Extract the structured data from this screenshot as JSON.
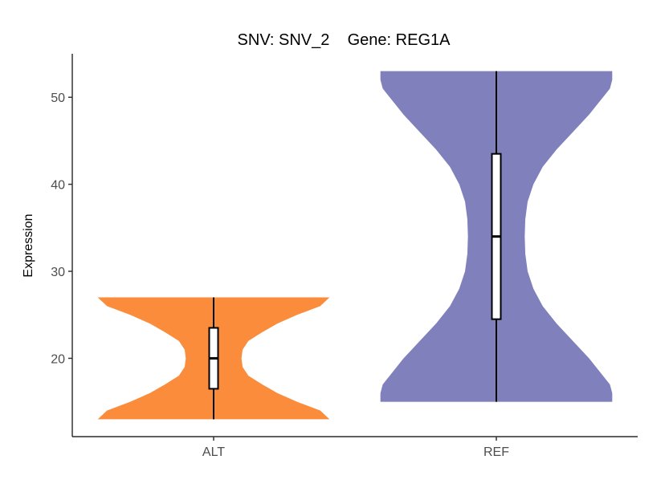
{
  "chart_data": {
    "type": "violin",
    "title": "SNV: SNV_2    Gene: REG1A",
    "xlabel": "",
    "ylabel": "Expression",
    "categories": [
      "ALT",
      "REF"
    ],
    "ylim": [
      11,
      55
    ],
    "yticks": [
      20,
      30,
      40,
      50
    ],
    "grid": false,
    "legend": "none",
    "series": [
      {
        "category": "ALT",
        "color": "#FB8C3C",
        "min": 13,
        "q1": 16.5,
        "median": 20,
        "q3": 23.5,
        "max": 27,
        "density": [
          [
            13,
            1.0
          ],
          [
            14,
            0.92
          ],
          [
            15,
            0.72
          ],
          [
            16,
            0.55
          ],
          [
            17,
            0.42
          ],
          [
            18,
            0.3
          ],
          [
            19,
            0.25
          ],
          [
            20,
            0.24
          ],
          [
            21,
            0.25
          ],
          [
            22,
            0.3
          ],
          [
            23,
            0.42
          ],
          [
            24,
            0.55
          ],
          [
            25,
            0.72
          ],
          [
            26,
            0.92
          ],
          [
            27,
            1.0
          ]
        ]
      },
      {
        "category": "REF",
        "color": "#8080BC",
        "min": 15,
        "q1": 24.5,
        "median": 34,
        "q3": 43.5,
        "max": 53,
        "density": [
          [
            15,
            1.0
          ],
          [
            16,
            1.0
          ],
          [
            17,
            0.98
          ],
          [
            18,
            0.92
          ],
          [
            20,
            0.8
          ],
          [
            22,
            0.66
          ],
          [
            24,
            0.52
          ],
          [
            26,
            0.4
          ],
          [
            28,
            0.32
          ],
          [
            30,
            0.27
          ],
          [
            32,
            0.25
          ],
          [
            34,
            0.245
          ],
          [
            36,
            0.25
          ],
          [
            38,
            0.27
          ],
          [
            40,
            0.32
          ],
          [
            42,
            0.4
          ],
          [
            44,
            0.52
          ],
          [
            46,
            0.66
          ],
          [
            48,
            0.8
          ],
          [
            50,
            0.92
          ],
          [
            51,
            0.98
          ],
          [
            52,
            1.0
          ],
          [
            53,
            1.0
          ]
        ]
      }
    ]
  }
}
